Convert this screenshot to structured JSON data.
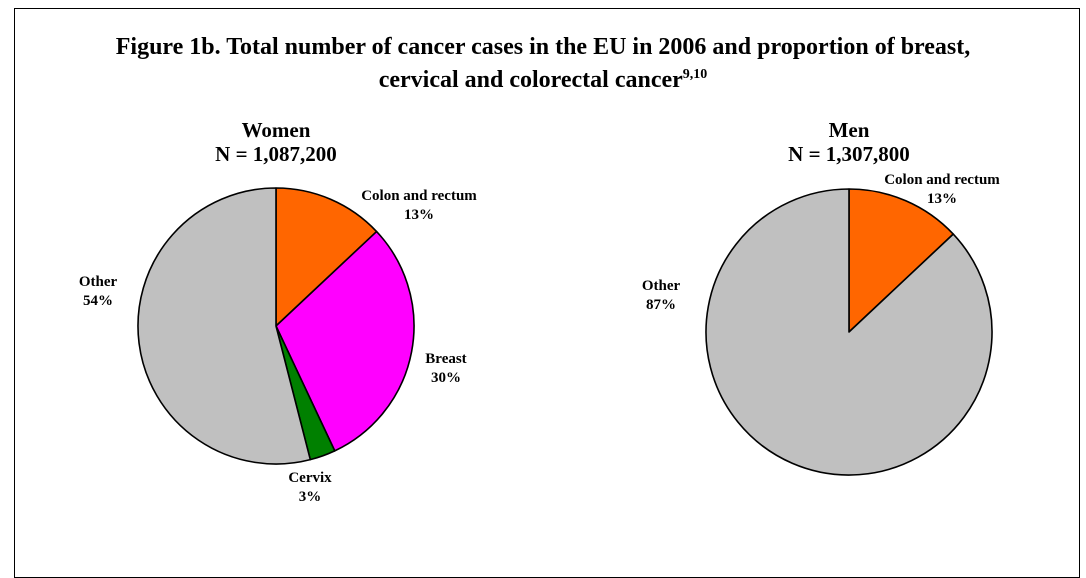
{
  "figure": {
    "title_line1": "Figure 1b. Total number of cancer cases in the EU in 2006 and proportion of breast,",
    "title_line2": "cervical and colorectal cancer",
    "title_ref": "9,10"
  },
  "chart_data": [
    {
      "type": "pie",
      "title": "Women",
      "subtitle": "N = 1,087,200",
      "categories": [
        "Colon and rectum",
        "Breast",
        "Cervix",
        "Other"
      ],
      "values": [
        13,
        30,
        3,
        54
      ],
      "value_labels": [
        "13%",
        "30%",
        "3%",
        "54%"
      ],
      "colors": [
        "#ff6600",
        "#ff00ff",
        "#008000",
        "#c0c0c0"
      ]
    },
    {
      "type": "pie",
      "title": "Men",
      "subtitle": "N = 1,307,800",
      "categories": [
        "Colon and rectum",
        "Other"
      ],
      "values": [
        13,
        87
      ],
      "value_labels": [
        "13%",
        "87%"
      ],
      "colors": [
        "#ff6600",
        "#c0c0c0"
      ]
    }
  ]
}
